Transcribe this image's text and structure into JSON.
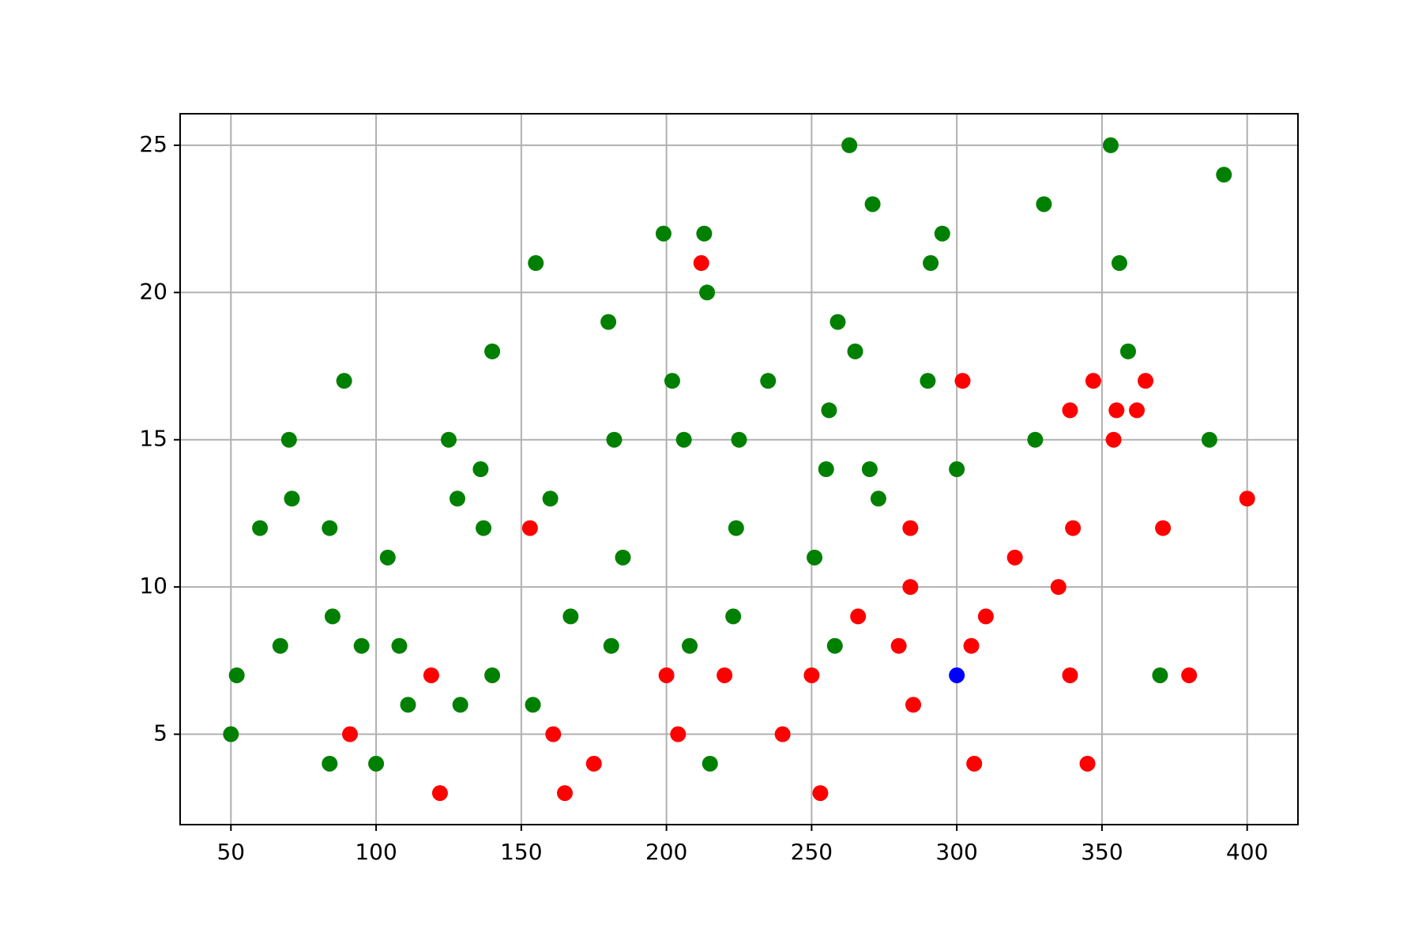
{
  "chart_data": {
    "type": "scatter",
    "xlim": [
      32.5,
      417.5
    ],
    "ylim": [
      1.93,
      26.07
    ],
    "xticks": [
      50,
      100,
      150,
      200,
      250,
      300,
      350,
      400
    ],
    "yticks": [
      5,
      10,
      15,
      20,
      25
    ],
    "grid": true,
    "series": [
      {
        "color": "#008000",
        "x": [
          50,
          52,
          60,
          67,
          70,
          71,
          84,
          84,
          85,
          89,
          95,
          100,
          104,
          108,
          111,
          125,
          128,
          129,
          136,
          137,
          140,
          140,
          154,
          155,
          160,
          167,
          180,
          181,
          182,
          185,
          199,
          202,
          206,
          208,
          213,
          214,
          215,
          223,
          224,
          225,
          235,
          251,
          255,
          256,
          258,
          259,
          263,
          265,
          270,
          271,
          273,
          290,
          291,
          295,
          300,
          327,
          330,
          353,
          356,
          359,
          370,
          387,
          392
        ],
        "values": [
          5,
          7,
          12,
          8,
          15,
          13,
          12,
          4,
          9,
          17,
          8,
          4,
          11,
          8,
          6,
          15,
          13,
          6,
          14,
          12,
          18,
          7,
          6,
          21,
          13,
          9,
          19,
          8,
          15,
          11,
          22,
          17,
          15,
          8,
          22,
          20,
          4,
          9,
          12,
          15,
          17,
          11,
          14,
          16,
          8,
          19,
          25,
          18,
          14,
          23,
          13,
          17,
          21,
          22,
          14,
          15,
          23,
          25,
          21,
          18,
          7,
          15,
          24
        ]
      },
      {
        "color": "#ff0000",
        "x": [
          91,
          119,
          122,
          153,
          161,
          165,
          175,
          200,
          204,
          212,
          220,
          240,
          250,
          253,
          266,
          280,
          284,
          284,
          285,
          302,
          305,
          306,
          310,
          320,
          335,
          339,
          339,
          340,
          345,
          347,
          354,
          355,
          362,
          365,
          371,
          380,
          400
        ],
        "values": [
          5,
          7,
          3,
          12,
          5,
          3,
          4,
          7,
          5,
          21,
          7,
          5,
          7,
          3,
          9,
          8,
          12,
          10,
          6,
          17,
          8,
          4,
          9,
          11,
          10,
          16,
          7,
          12,
          4,
          17,
          15,
          16,
          16,
          17,
          12,
          7,
          13
        ]
      },
      {
        "color": "#0000ff",
        "x": [
          300
        ],
        "values": [
          7
        ]
      }
    ]
  }
}
